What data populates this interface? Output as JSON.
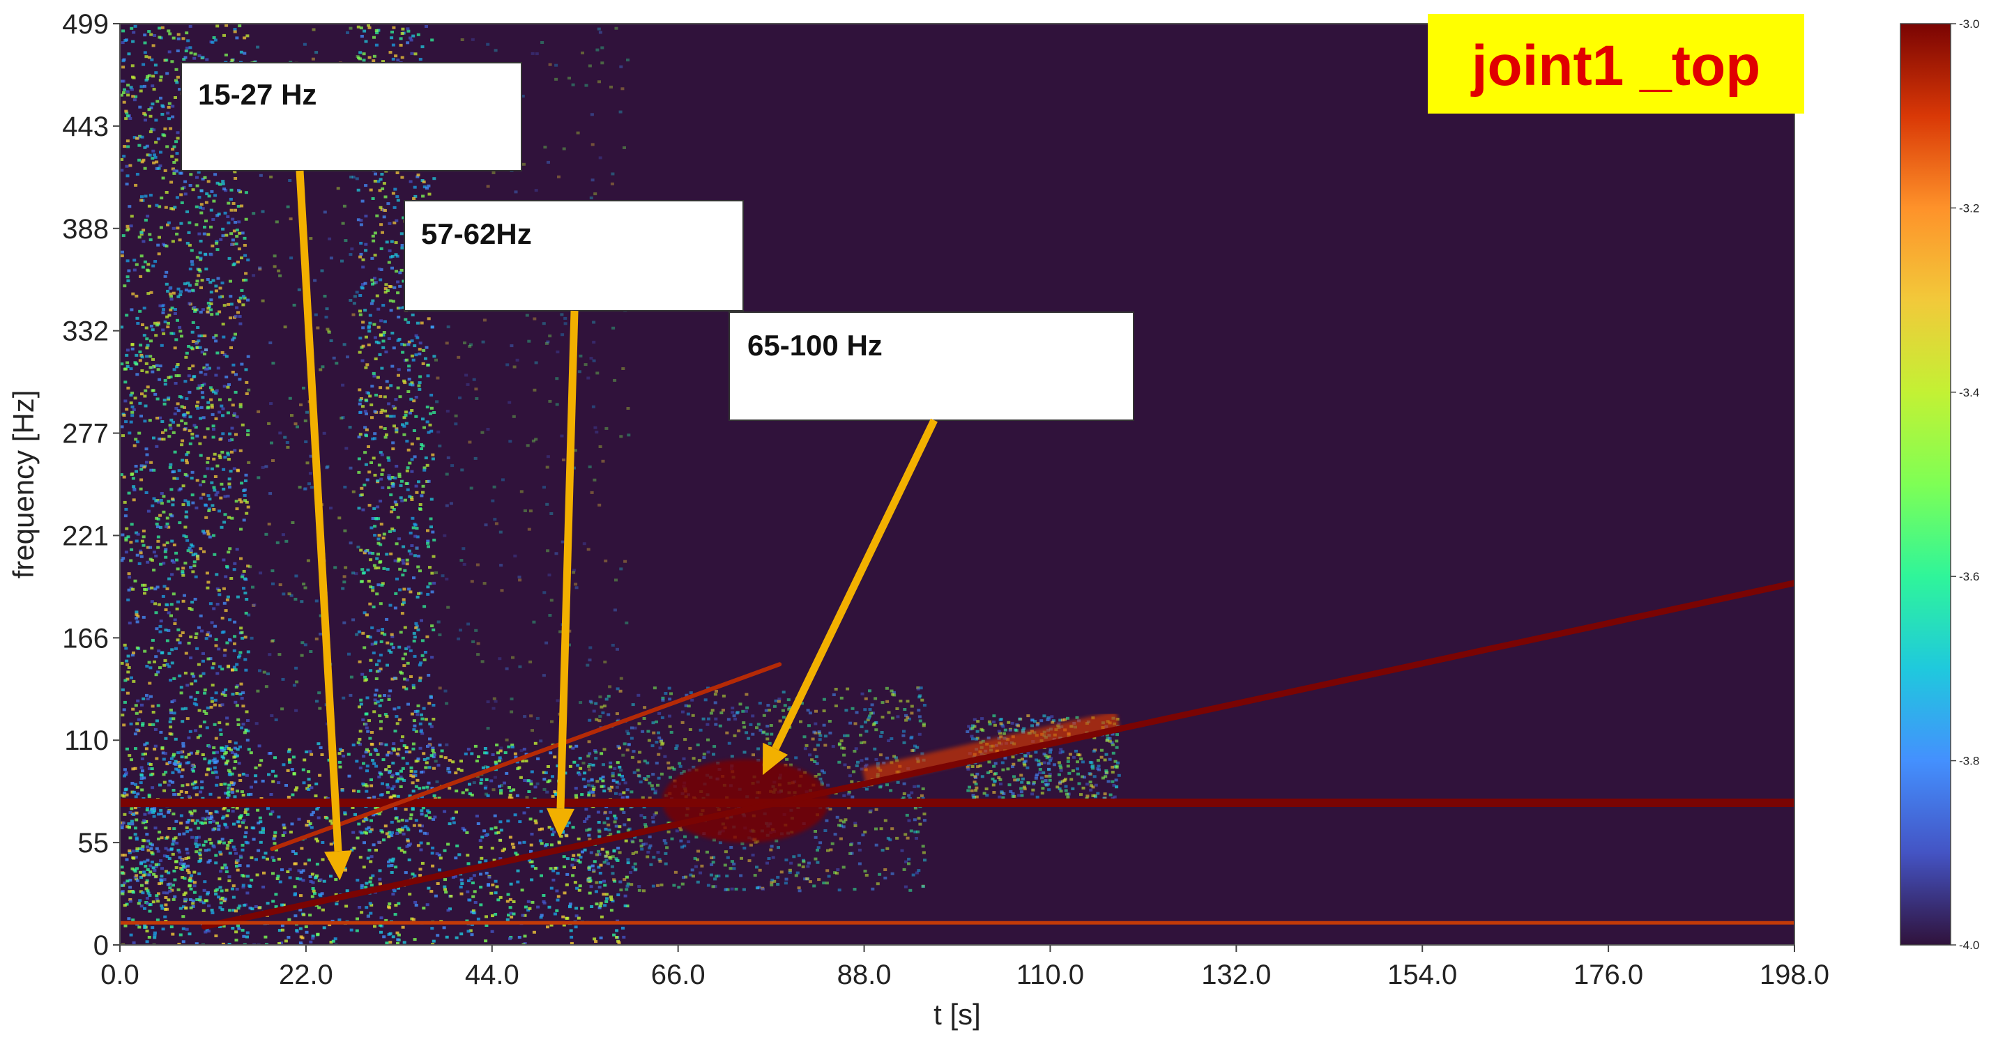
{
  "chart_data": {
    "type": "heatmap",
    "title": "joint1 _top",
    "title_color": "#e00000",
    "title_background": "#ffff00",
    "xlabel": "t [s]",
    "ylabel": "frequency [Hz]",
    "xlim": [
      0,
      198
    ],
    "ylim": [
      0,
      499
    ],
    "x_ticks": [
      "0.0",
      "22.0",
      "44.0",
      "66.0",
      "88.0",
      "110.0",
      "132.0",
      "154.0",
      "176.0",
      "198.0"
    ],
    "y_ticks": [
      "0",
      "55",
      "110",
      "166",
      "221",
      "277",
      "332",
      "388",
      "443",
      "499"
    ],
    "colorbar": {
      "range": [
        -4.0,
        -3.0
      ],
      "ticks": [
        "-4.0",
        "-3.8",
        "-3.6",
        "-3.4",
        "-3.2",
        "-3.0"
      ],
      "colormap": "turbo",
      "background_color": "#30123b",
      "peak_color": "#7a0403"
    },
    "ridges": [
      {
        "name": "",
        "x": [
          0,
          198
        ],
        "y": [
          77,
          77
        ],
        "note": "constant band"
      },
      {
        "name": "",
        "x": [
          10,
          198
        ],
        "y": [
          10,
          196
        ],
        "note": "ramp"
      },
      {
        "name": "",
        "x": [
          18,
          78
        ],
        "y": [
          52,
          152
        ],
        "note": "harmonic ramp"
      },
      {
        "name": "",
        "x": [
          0,
          198
        ],
        "y": [
          12,
          12
        ],
        "note": "low band"
      }
    ],
    "annotations": [
      {
        "label": "15-27 Hz",
        "arrow_to": [
          26,
          35
        ]
      },
      {
        "label": "57-62Hz",
        "arrow_to": [
          52,
          58
        ]
      },
      {
        "label": "65-100 Hz",
        "arrow_to": [
          76,
          92
        ]
      }
    ]
  }
}
